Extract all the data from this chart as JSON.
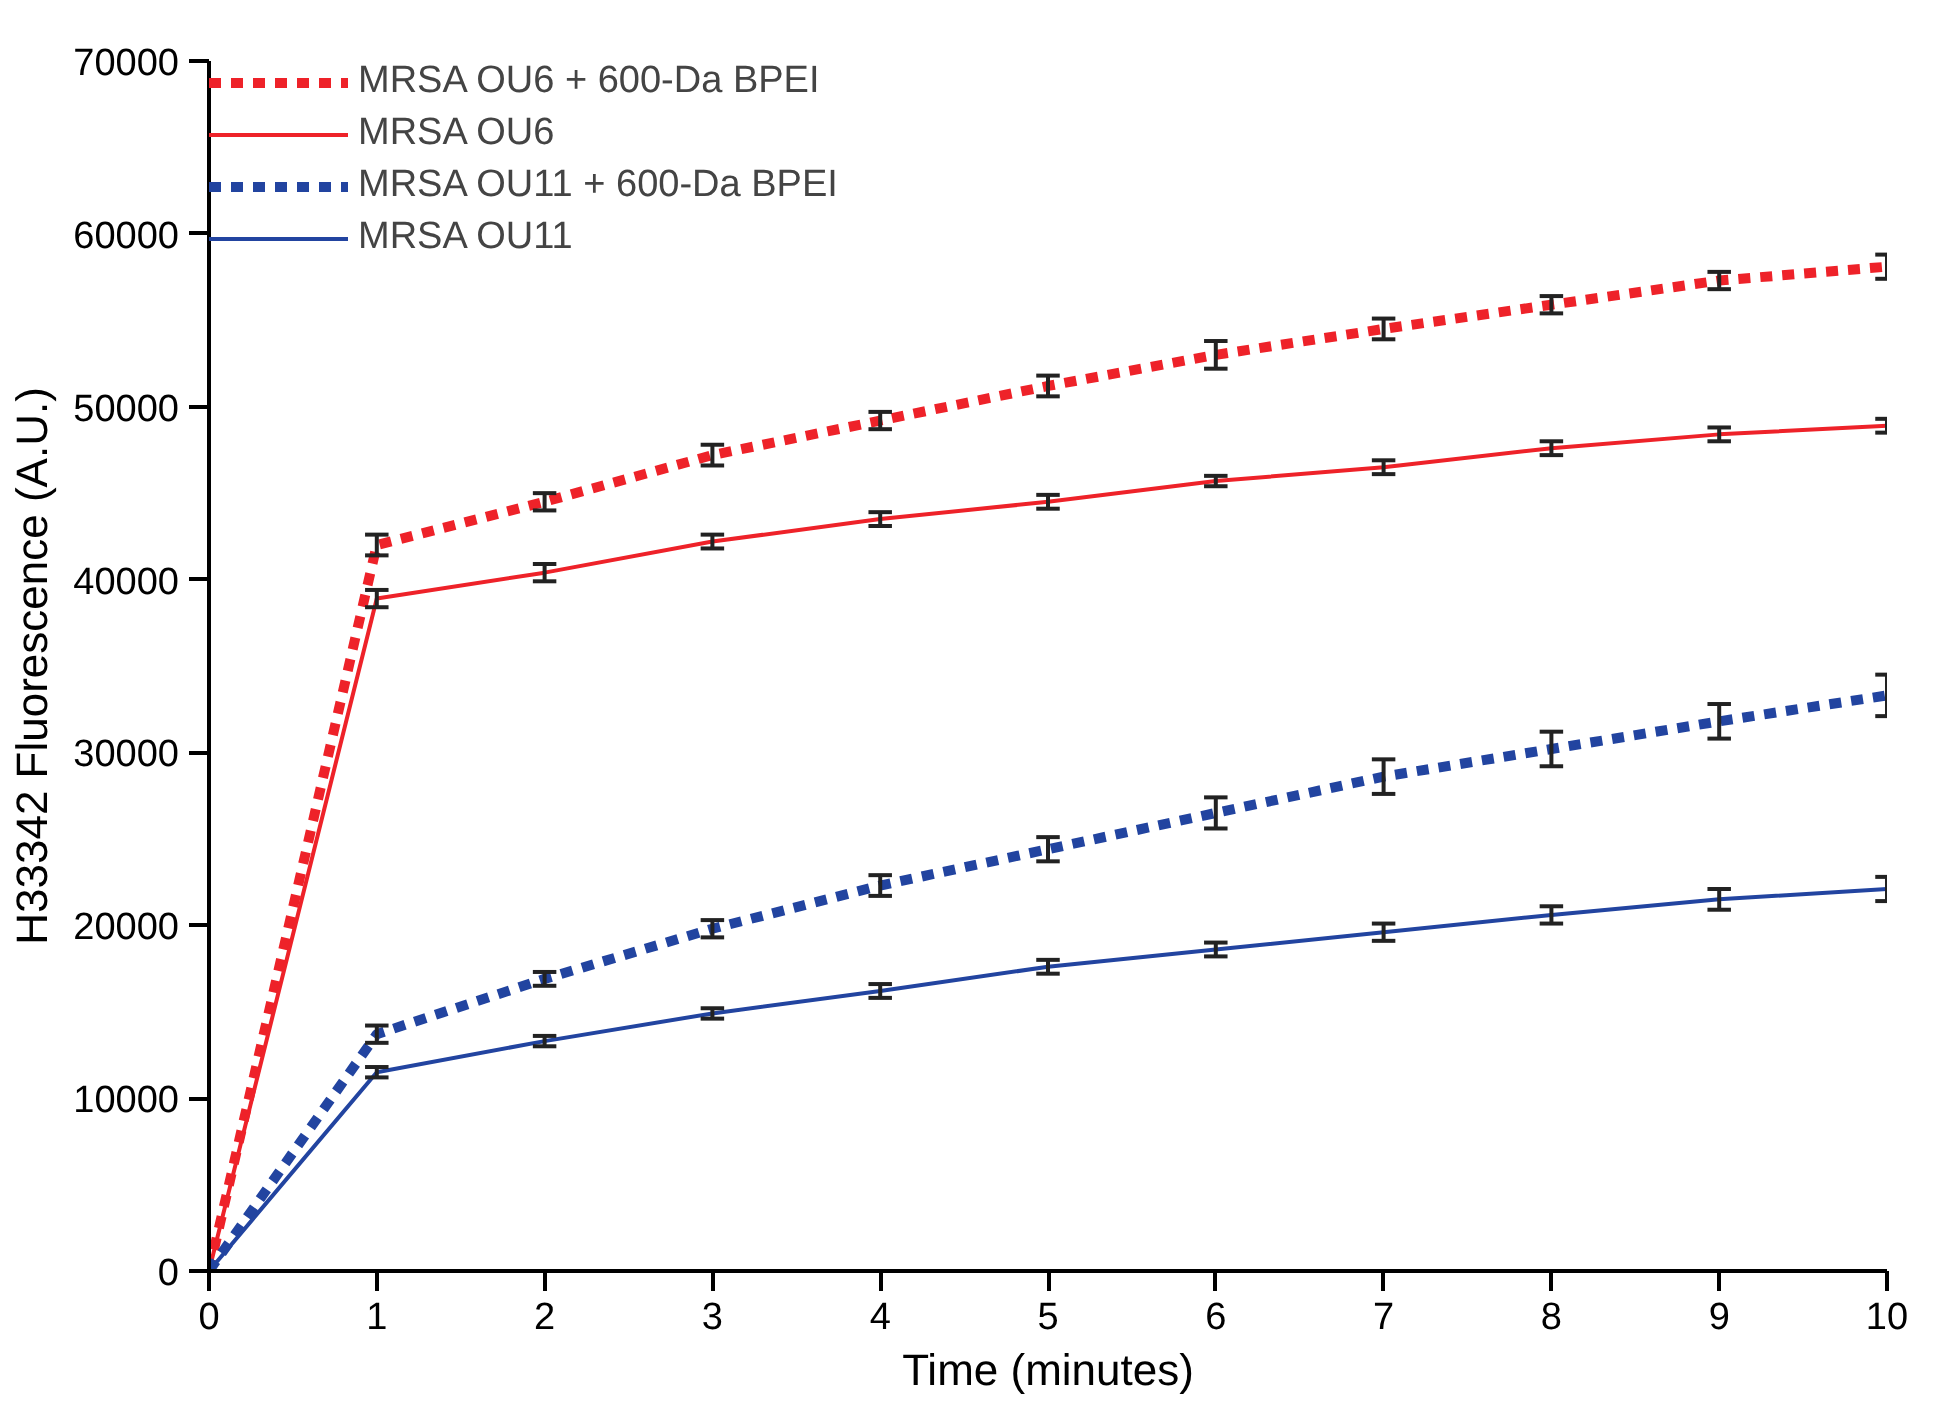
{
  "chart_data": {
    "type": "line",
    "xlabel": "Time (minutes)",
    "ylabel": "H33342 Fluorescence (A.U.)",
    "x": [
      0,
      1,
      2,
      3,
      4,
      5,
      6,
      7,
      8,
      9,
      10
    ],
    "series": [
      {
        "name": "MRSA OU6 + 600-Da BPEI",
        "color": "#ee2229",
        "line_style": "dashed",
        "values": [
          0,
          42000,
          44500,
          47200,
          49200,
          51200,
          53000,
          54500,
          55900,
          57300,
          58100
        ],
        "errors": [
          null,
          600,
          500,
          600,
          500,
          600,
          800,
          600,
          500,
          500,
          700
        ]
      },
      {
        "name": "MRSA OU6",
        "color": "#ee2229",
        "line_style": "solid",
        "values": [
          0,
          38900,
          40400,
          42200,
          43500,
          44500,
          45700,
          46500,
          47600,
          48400,
          48900
        ],
        "errors": [
          null,
          500,
          500,
          400,
          400,
          400,
          300,
          400,
          400,
          400,
          400
        ]
      },
      {
        "name": "MRSA OU11 + 600-Da BPEI",
        "color": "#2244a0",
        "line_style": "dashed",
        "values": [
          0,
          13700,
          16900,
          19800,
          22300,
          24400,
          26500,
          28600,
          30200,
          31800,
          33300
        ],
        "errors": [
          null,
          500,
          400,
          500,
          600,
          700,
          900,
          1000,
          1000,
          1000,
          1200
        ]
      },
      {
        "name": "MRSA OU11",
        "color": "#2244a0",
        "line_style": "solid",
        "values": [
          0,
          11500,
          13300,
          14900,
          16200,
          17600,
          18600,
          19600,
          20600,
          21500,
          22100
        ],
        "errors": [
          null,
          300,
          300,
          300,
          400,
          400,
          400,
          500,
          500,
          600,
          700
        ]
      }
    ],
    "xlim": [
      0,
      10
    ],
    "ylim": [
      0,
      70000
    ],
    "xticks": [
      0,
      1,
      2,
      3,
      4,
      5,
      6,
      7,
      8,
      9,
      10
    ],
    "yticks": [
      0,
      10000,
      20000,
      30000,
      40000,
      50000,
      60000,
      70000
    ],
    "grid": false,
    "legend": "top left",
    "marker": "none"
  }
}
